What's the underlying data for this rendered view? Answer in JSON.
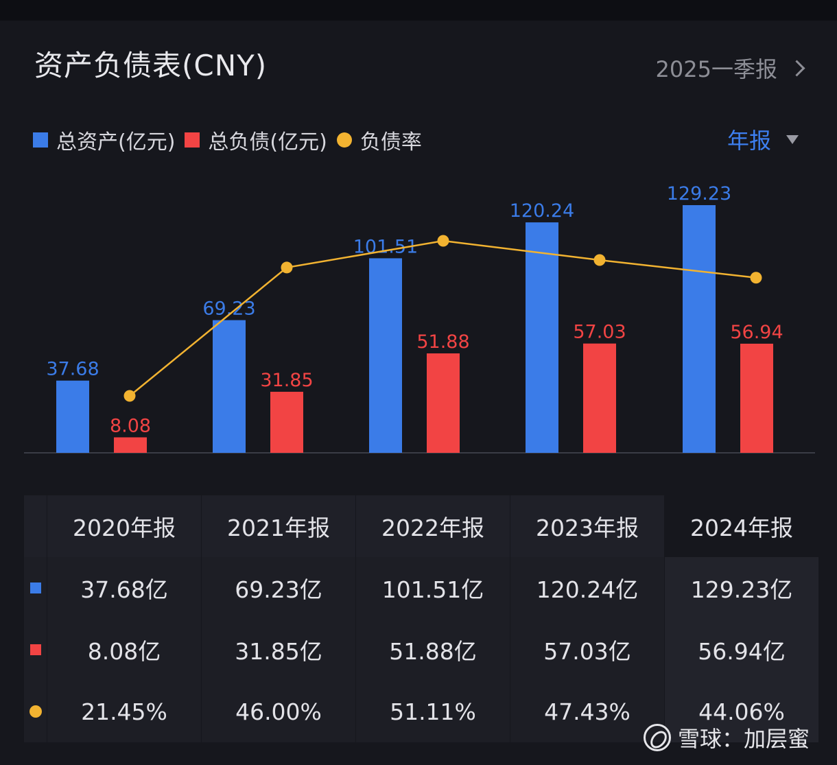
{
  "header": {
    "title": "资产负债表(CNY)",
    "period_label": "2025一季报"
  },
  "legend": {
    "assets_label": "总资产(亿元)",
    "liabilities_label": "总负债(亿元)",
    "ratio_label": "负债率",
    "period_select": "年报"
  },
  "colors": {
    "assets": "#3b7ce8",
    "liabilities": "#f24444",
    "ratio": "#f2b331"
  },
  "chart_data": {
    "type": "bar",
    "categories": [
      "2020年报",
      "2021年报",
      "2022年报",
      "2023年报",
      "2024年报"
    ],
    "series": [
      {
        "name": "总资产(亿元)",
        "values": [
          37.68,
          69.23,
          101.51,
          120.24,
          129.23
        ]
      },
      {
        "name": "总负债(亿元)",
        "values": [
          8.08,
          31.85,
          51.88,
          57.03,
          56.94
        ]
      },
      {
        "name": "负债率",
        "type": "line",
        "values": [
          21.45,
          46.0,
          51.11,
          47.43,
          44.06
        ]
      }
    ],
    "data_labels": {
      "assets": [
        "37.68",
        "69.23",
        "101.51",
        "120.24",
        "129.23"
      ],
      "liabilities": [
        "8.08",
        "31.85",
        "51.88",
        "57.03",
        "56.94"
      ]
    }
  },
  "table": {
    "headers": [
      "2020年报",
      "2021年报",
      "2022年报",
      "2023年报",
      "2024年报"
    ],
    "rows": [
      {
        "marker": "assets",
        "cells": [
          "37.68亿",
          "69.23亿",
          "101.51亿",
          "120.24亿",
          "129.23亿"
        ]
      },
      {
        "marker": "liabilities",
        "cells": [
          "8.08亿",
          "31.85亿",
          "51.88亿",
          "57.03亿",
          "56.94亿"
        ]
      },
      {
        "marker": "ratio",
        "cells": [
          "21.45%",
          "46.00%",
          "51.11%",
          "47.43%",
          "44.06%"
        ]
      }
    ]
  },
  "watermark": {
    "text": "雪球：加层蜜"
  }
}
